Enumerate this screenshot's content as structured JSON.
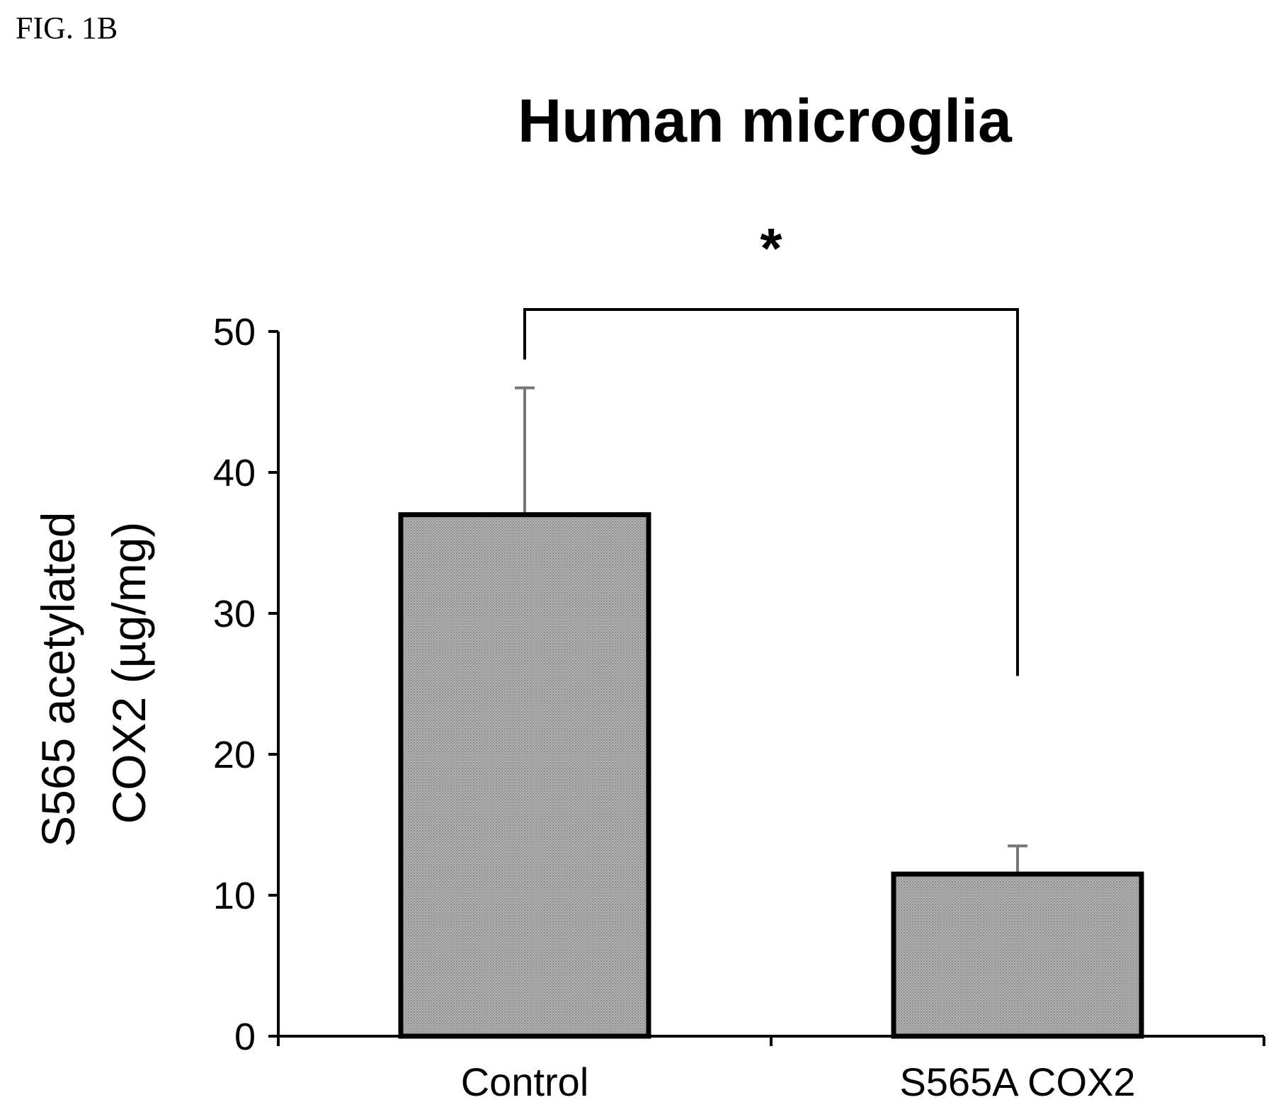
{
  "figure_label": "FIG. 1B",
  "chart_data": {
    "type": "bar",
    "title": "Human microglia",
    "ylabel_lines": [
      "S565 acetylated",
      "COX2  (µg/mg)"
    ],
    "xlabel": "",
    "categories": [
      "Control",
      "S565A COX2"
    ],
    "values": [
      37,
      11.5
    ],
    "error_upper": [
      46,
      13.5
    ],
    "ylim": [
      0,
      50
    ],
    "yticks": [
      0,
      10,
      20,
      30,
      40,
      50
    ],
    "significance": {
      "marker": "*",
      "between": [
        0,
        1
      ]
    },
    "bar_color": "#a9a9a9",
    "grid": false,
    "legend": "none"
  }
}
